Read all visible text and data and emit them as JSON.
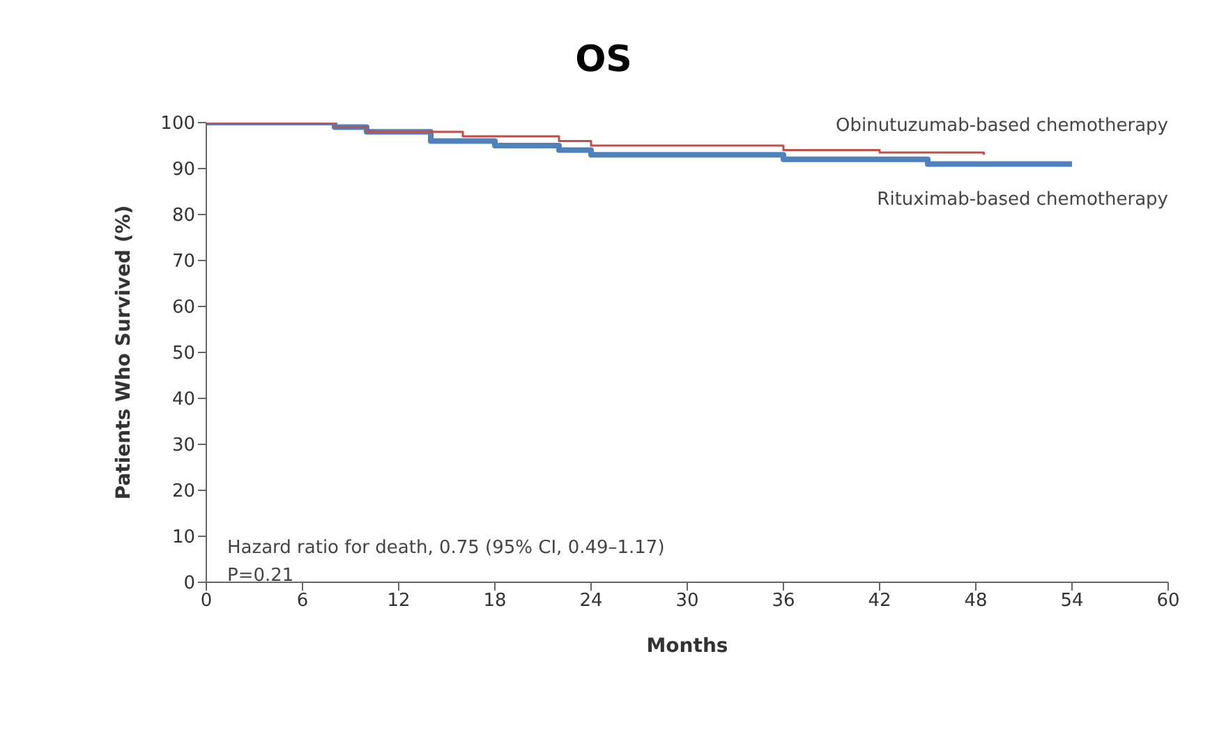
{
  "chart_data": {
    "type": "step",
    "title": "OS",
    "xlabel": "Months",
    "ylabel": "Patients Who Survived (%)",
    "xlim": [
      0,
      60
    ],
    "xticks": [
      0,
      6,
      12,
      18,
      24,
      30,
      36,
      42,
      48,
      54,
      60
    ],
    "ylim": [
      0,
      100
    ],
    "yticks": [
      0,
      10,
      20,
      30,
      40,
      50,
      60,
      70,
      80,
      90,
      100
    ],
    "series": [
      {
        "name": "Obinutuzumab-based chemotherapy",
        "color": "#c0504d",
        "x": [
          0,
          8,
          10,
          16,
          22,
          24,
          36,
          42,
          48.5
        ],
        "values": [
          100,
          99,
          98,
          97,
          96,
          95,
          94,
          93.5,
          93
        ]
      },
      {
        "name": "Rituximab-based chemotherapy",
        "color": "#4f81bd",
        "x": [
          0,
          8,
          10,
          14,
          18,
          22,
          24,
          36,
          45,
          54
        ],
        "values": [
          100,
          99,
          98,
          96,
          95,
          94,
          93,
          92,
          91,
          91
        ]
      }
    ],
    "annotations": [
      "Hazard ratio for death, 0.75 (95% CI, 0.49–1.17)",
      "P=0.21"
    ]
  }
}
